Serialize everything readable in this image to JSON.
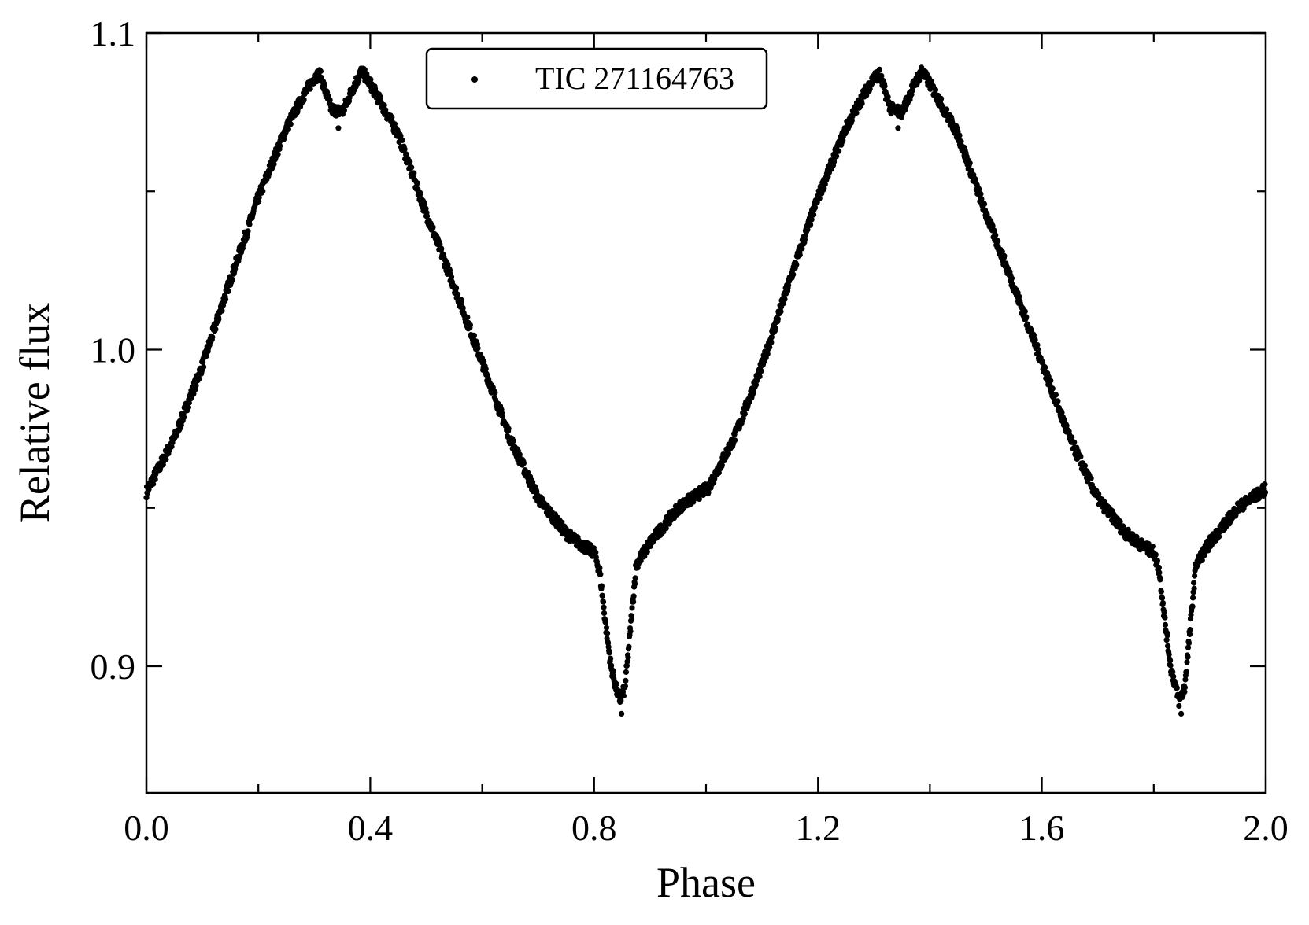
{
  "chart_data": {
    "type": "scatter",
    "title": "",
    "xlabel": "Phase",
    "ylabel": "Relative flux",
    "xlim": [
      0.0,
      2.0
    ],
    "ylim": [
      0.86,
      1.1
    ],
    "x_ticks": [
      0.0,
      0.4,
      0.8,
      1.2,
      1.6,
      2.0
    ],
    "x_tick_labels": [
      "0.0",
      "0.4",
      "0.8",
      "1.2",
      "1.6",
      "2.0"
    ],
    "y_ticks": [
      0.9,
      1.0,
      1.1
    ],
    "y_tick_labels": [
      "0.9",
      "1.0",
      "1.1"
    ],
    "x_minor_step": 0.2,
    "y_minor_step": 0.05,
    "grid": false,
    "legend": {
      "position": "top-center",
      "entries": [
        "TIC 271164763"
      ]
    },
    "marker_color": "#000000",
    "series": [
      {
        "name": "TIC 271164763",
        "period_phase": 1.0,
        "curve_points": [
          [
            0.0,
            0.955
          ],
          [
            0.05,
            0.972
          ],
          [
            0.1,
            0.995
          ],
          [
            0.15,
            1.022
          ],
          [
            0.2,
            1.048
          ],
          [
            0.25,
            1.07
          ],
          [
            0.28,
            1.08
          ],
          [
            0.3,
            1.086
          ],
          [
            0.31,
            1.087
          ],
          [
            0.33,
            1.076
          ],
          [
            0.35,
            1.075
          ],
          [
            0.37,
            1.083
          ],
          [
            0.385,
            1.088
          ],
          [
            0.4,
            1.084
          ],
          [
            0.45,
            1.068
          ],
          [
            0.5,
            1.043
          ],
          [
            0.55,
            1.02
          ],
          [
            0.6,
            0.996
          ],
          [
            0.65,
            0.972
          ],
          [
            0.7,
            0.953
          ],
          [
            0.75,
            0.942
          ],
          [
            0.78,
            0.938
          ],
          [
            0.8,
            0.936
          ],
          [
            0.81,
            0.93
          ],
          [
            0.82,
            0.914
          ],
          [
            0.83,
            0.9
          ],
          [
            0.845,
            0.889
          ],
          [
            0.855,
            0.893
          ],
          [
            0.865,
            0.912
          ],
          [
            0.875,
            0.932
          ],
          [
            0.9,
            0.939
          ],
          [
            0.95,
            0.95
          ],
          [
            1.0,
            0.956
          ]
        ],
        "outliers": [
          [
            0.343,
            1.07
          ],
          [
            0.849,
            0.885
          ],
          [
            1.343,
            1.07
          ],
          [
            1.849,
            0.885
          ]
        ]
      }
    ]
  }
}
